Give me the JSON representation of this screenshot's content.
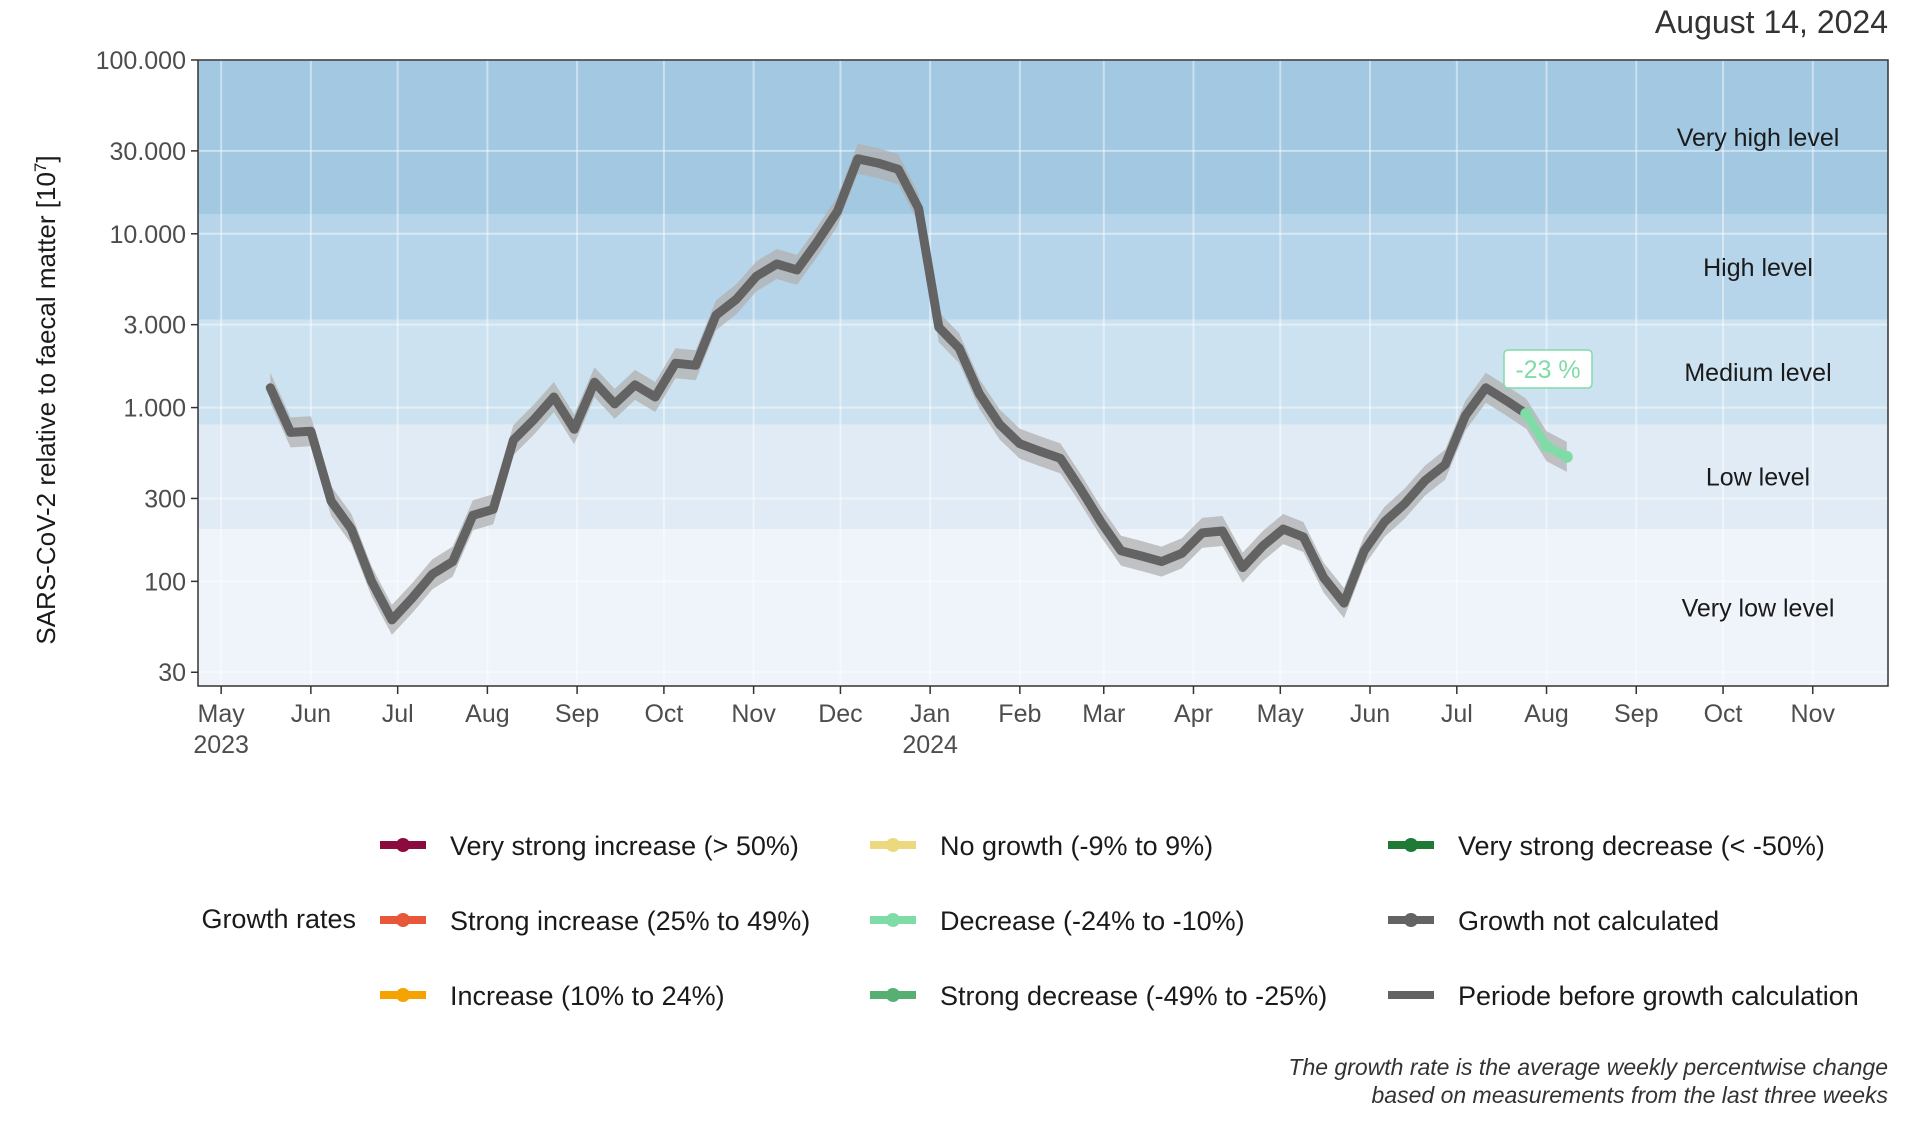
{
  "date": "August 14, 2024",
  "note_lines": [
    "The growth rate is the average weekly percentwise change",
    "based on measurements from the last three weeks"
  ],
  "legend": {
    "title": "Growth rates",
    "items": [
      {
        "label": "Very strong increase (> 50%)",
        "color": "#8b0b3f",
        "dot": true
      },
      {
        "label": "Strong increase (25% to 49%)",
        "color": "#e8573a",
        "dot": true
      },
      {
        "label": "Increase (10% to 24%)",
        "color": "#f5a300",
        "dot": true
      },
      {
        "label": "No growth (-9% to 9%)",
        "color": "#ecd97d",
        "dot": true
      },
      {
        "label": "Decrease (-24% to -10%)",
        "color": "#80dca7",
        "dot": true
      },
      {
        "label": "Strong decrease (-49% to -25%)",
        "color": "#57b071",
        "dot": true
      },
      {
        "label": "Very strong decrease (< -50%)",
        "color": "#1f7a35",
        "dot": true
      },
      {
        "label": "Growth not calculated",
        "color": "#636363",
        "dot": true
      },
      {
        "label": "Periode before growth calculation",
        "color": "#636363",
        "dot": false
      }
    ]
  },
  "chart_data": {
    "type": "line",
    "title": "",
    "xlabel": "",
    "ylabel": "SARS-CoV-2 relative to faecal matter [10^7]",
    "y_scale": "log",
    "ylim": [
      25,
      100000
    ],
    "xlim": [
      "2023-04-23",
      "2024-11-27"
    ],
    "y_ticks": [
      {
        "value": 30,
        "label": "30"
      },
      {
        "value": 100,
        "label": "100"
      },
      {
        "value": 300,
        "label": "300"
      },
      {
        "value": 1000,
        "label": "1.000"
      },
      {
        "value": 3000,
        "label": "3.000"
      },
      {
        "value": 10000,
        "label": "10.000"
      },
      {
        "value": 30000,
        "label": "30.000"
      },
      {
        "value": 100000,
        "label": "100.000"
      }
    ],
    "x_ticks": [
      {
        "date": "2023-05-01",
        "label": "May",
        "sub": "2023"
      },
      {
        "date": "2023-06-01",
        "label": "Jun",
        "sub": ""
      },
      {
        "date": "2023-07-01",
        "label": "Jul",
        "sub": ""
      },
      {
        "date": "2023-08-01",
        "label": "Aug",
        "sub": ""
      },
      {
        "date": "2023-09-01",
        "label": "Sep",
        "sub": ""
      },
      {
        "date": "2023-10-01",
        "label": "Oct",
        "sub": ""
      },
      {
        "date": "2023-11-01",
        "label": "Nov",
        "sub": ""
      },
      {
        "date": "2023-12-01",
        "label": "Dec",
        "sub": ""
      },
      {
        "date": "2024-01-01",
        "label": "Jan",
        "sub": "2024"
      },
      {
        "date": "2024-02-01",
        "label": "Feb",
        "sub": ""
      },
      {
        "date": "2024-03-01",
        "label": "Mar",
        "sub": ""
      },
      {
        "date": "2024-04-01",
        "label": "Apr",
        "sub": ""
      },
      {
        "date": "2024-05-01",
        "label": "May",
        "sub": ""
      },
      {
        "date": "2024-06-01",
        "label": "Jun",
        "sub": ""
      },
      {
        "date": "2024-07-01",
        "label": "Jul",
        "sub": ""
      },
      {
        "date": "2024-08-01",
        "label": "Aug",
        "sub": ""
      },
      {
        "date": "2024-09-01",
        "label": "Sep",
        "sub": ""
      },
      {
        "date": "2024-10-01",
        "label": "Oct",
        "sub": ""
      },
      {
        "date": "2024-11-01",
        "label": "Nov",
        "sub": ""
      }
    ],
    "levels": [
      {
        "name": "Very low level",
        "from": 25,
        "to": 200,
        "color": "#eef4fa"
      },
      {
        "name": "Low level",
        "from": 200,
        "to": 800,
        "color": "#e1ebf5"
      },
      {
        "name": "Medium level",
        "from": 800,
        "to": 3200,
        "color": "#cde2f0"
      },
      {
        "name": "High level",
        "from": 3200,
        "to": 13000,
        "color": "#b7d5ea"
      },
      {
        "name": "Very high level",
        "from": 13000,
        "to": 100000,
        "color": "#a2c8e2"
      }
    ],
    "series": [
      {
        "color": "#636363",
        "band_color": "#b0b0b0",
        "points": [
          {
            "x": "2023-05-18",
            "y": 1300
          },
          {
            "x": "2023-05-25",
            "y": 720
          },
          {
            "x": "2023-06-01",
            "y": 730
          },
          {
            "x": "2023-06-08",
            "y": 290
          },
          {
            "x": "2023-06-15",
            "y": 200
          },
          {
            "x": "2023-06-22",
            "y": 100
          },
          {
            "x": "2023-06-29",
            "y": 60
          },
          {
            "x": "2023-07-06",
            "y": 80
          },
          {
            "x": "2023-07-13",
            "y": 110
          },
          {
            "x": "2023-07-20",
            "y": 130
          },
          {
            "x": "2023-07-27",
            "y": 240
          },
          {
            "x": "2023-08-03",
            "y": 260
          },
          {
            "x": "2023-08-10",
            "y": 650
          },
          {
            "x": "2023-08-17",
            "y": 850
          },
          {
            "x": "2023-08-24",
            "y": 1150
          },
          {
            "x": "2023-08-31",
            "y": 750
          },
          {
            "x": "2023-09-07",
            "y": 1400
          },
          {
            "x": "2023-09-14",
            "y": 1050
          },
          {
            "x": "2023-09-21",
            "y": 1350
          },
          {
            "x": "2023-09-28",
            "y": 1150
          },
          {
            "x": "2023-10-05",
            "y": 1800
          },
          {
            "x": "2023-10-12",
            "y": 1750
          },
          {
            "x": "2023-10-19",
            "y": 3400
          },
          {
            "x": "2023-10-26",
            "y": 4200
          },
          {
            "x": "2023-11-02",
            "y": 5700
          },
          {
            "x": "2023-11-09",
            "y": 6700
          },
          {
            "x": "2023-11-16",
            "y": 6200
          },
          {
            "x": "2023-11-23",
            "y": 9000
          },
          {
            "x": "2023-11-30",
            "y": 13500
          },
          {
            "x": "2023-12-07",
            "y": 27000
          },
          {
            "x": "2023-12-14",
            "y": 25500
          },
          {
            "x": "2023-12-21",
            "y": 23500
          },
          {
            "x": "2023-12-28",
            "y": 14000
          },
          {
            "x": "2024-01-04",
            "y": 2900
          },
          {
            "x": "2024-01-11",
            "y": 2200
          },
          {
            "x": "2024-01-18",
            "y": 1200
          },
          {
            "x": "2024-01-25",
            "y": 800
          },
          {
            "x": "2024-02-01",
            "y": 620
          },
          {
            "x": "2024-02-08",
            "y": 560
          },
          {
            "x": "2024-02-15",
            "y": 510
          },
          {
            "x": "2024-02-22",
            "y": 340
          },
          {
            "x": "2024-02-29",
            "y": 220
          },
          {
            "x": "2024-03-07",
            "y": 150
          },
          {
            "x": "2024-03-14",
            "y": 140
          },
          {
            "x": "2024-03-21",
            "y": 130
          },
          {
            "x": "2024-03-28",
            "y": 145
          },
          {
            "x": "2024-04-04",
            "y": 190
          },
          {
            "x": "2024-04-11",
            "y": 195
          },
          {
            "x": "2024-04-18",
            "y": 120
          },
          {
            "x": "2024-04-25",
            "y": 160
          },
          {
            "x": "2024-05-02",
            "y": 200
          },
          {
            "x": "2024-05-09",
            "y": 180
          },
          {
            "x": "2024-05-16",
            "y": 105
          },
          {
            "x": "2024-05-23",
            "y": 75
          },
          {
            "x": "2024-05-30",
            "y": 150
          },
          {
            "x": "2024-06-06",
            "y": 220
          },
          {
            "x": "2024-06-13",
            "y": 280
          },
          {
            "x": "2024-06-20",
            "y": 380
          },
          {
            "x": "2024-06-27",
            "y": 470
          },
          {
            "x": "2024-07-04",
            "y": 900
          },
          {
            "x": "2024-07-11",
            "y": 1300
          },
          {
            "x": "2024-07-18",
            "y": 1100
          },
          {
            "x": "2024-07-25",
            "y": 920
          }
        ]
      },
      {
        "color": "#80dca7",
        "band_color": "#b0b0b0",
        "annotation": "-23 %",
        "points": [
          {
            "x": "2024-07-25",
            "y": 920
          },
          {
            "x": "2024-08-01",
            "y": 600
          },
          {
            "x": "2024-08-08",
            "y": 520
          }
        ]
      }
    ]
  }
}
